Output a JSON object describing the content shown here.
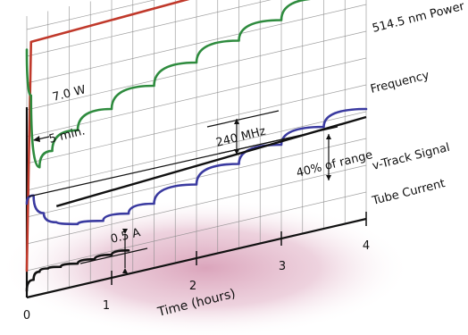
{
  "chart_data": {
    "type": "line",
    "xlabel": "Time (hours)",
    "ylabel": "",
    "x_ticks": [
      "0",
      "1",
      "2",
      "3",
      "4"
    ],
    "xlim": [
      0,
      4
    ],
    "grid": true,
    "series": [
      {
        "name": "514.5 nm Power",
        "color": "#c0392b",
        "x": [
          0,
          0.05,
          4
        ],
        "y": [
          0.2,
          1.9,
          2.0
        ]
      },
      {
        "name": "Frequency",
        "color": "#2e8b3e",
        "x": [
          0,
          0.05,
          0.15,
          0.3,
          0.6,
          1.0,
          1.5,
          2.0,
          2.5,
          3.0,
          3.5,
          4.0
        ],
        "y": [
          1.85,
          1.5,
          0.95,
          1.05,
          1.16,
          1.26,
          1.36,
          1.46,
          1.55,
          1.63,
          1.72,
          1.8
        ]
      },
      {
        "name": "v-Track Signal",
        "color": "#3a3aa0",
        "x": [
          0,
          0.08,
          0.2,
          0.35,
          0.6,
          0.9,
          1.2,
          1.5,
          2.0,
          2.5,
          3.0,
          3.5,
          4.0
        ],
        "y": [
          0.7,
          0.75,
          0.6,
          0.51,
          0.46,
          0.44,
          0.45,
          0.48,
          0.55,
          0.63,
          0.7,
          0.76,
          0.82
        ]
      },
      {
        "name": "Tube Current",
        "color": "#111111",
        "x": [
          0,
          0.08,
          0.15,
          0.25,
          0.4,
          0.6,
          0.8,
          1.0,
          1.2
        ],
        "y": [
          0.05,
          0.12,
          0.17,
          0.18,
          0.17,
          0.165,
          0.168,
          0.172,
          0.175
        ]
      }
    ],
    "annotations": [
      "7.0 W",
      "5 min.",
      "240 MHz",
      "40% of range",
      "0.5 A"
    ]
  }
}
